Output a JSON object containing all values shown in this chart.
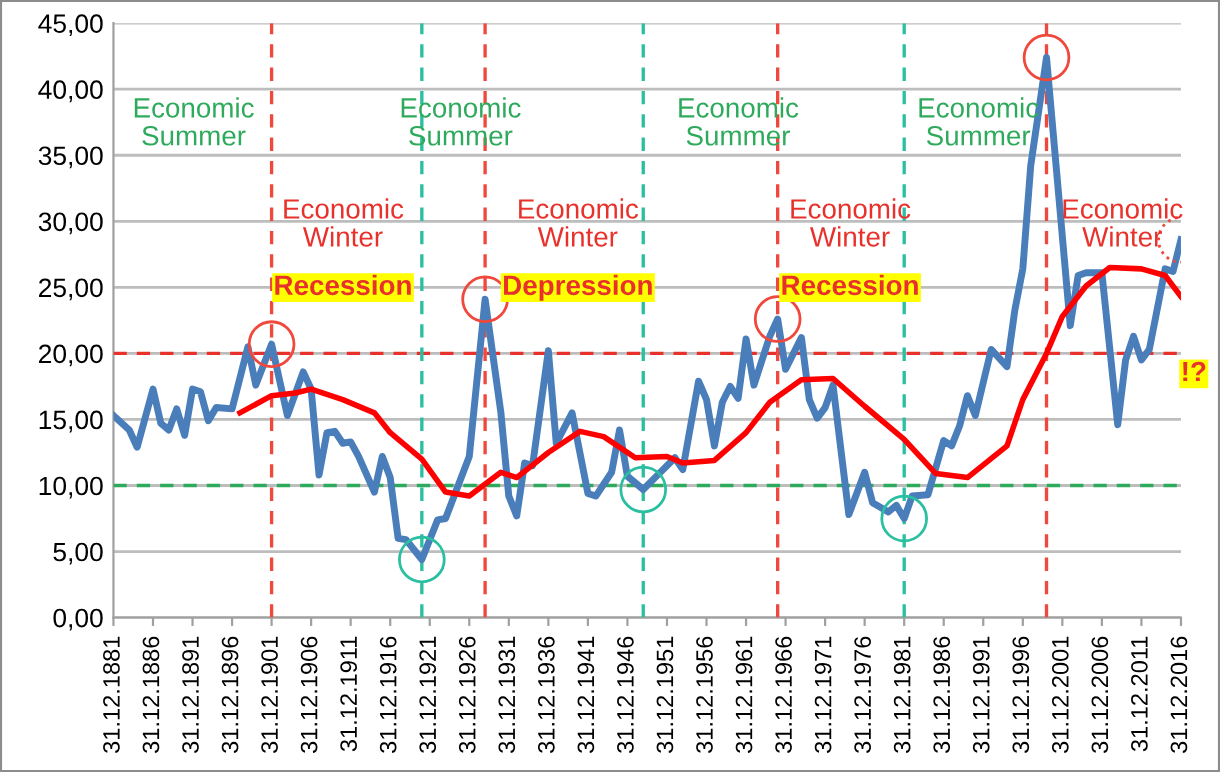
{
  "chart_data": {
    "type": "line",
    "series": [
      {
        "color": "#4a7ebb",
        "x": [
          "1881-12-31",
          "1883-12-31",
          "1884-12-31",
          "1886-12-31",
          "1887-12-31",
          "1888-12-31",
          "1889-12-31",
          "1890-12-31",
          "1891-12-31",
          "1892-12-31",
          "1893-12-31",
          "1894-12-31",
          "1896-12-31",
          "1898-12-31",
          "1899-12-31",
          "1901-12-31",
          "1903-12-31",
          "1905-12-31",
          "1906-12-31",
          "1907-12-31",
          "1908-12-31",
          "1909-12-31",
          "1910-12-31",
          "1911-12-31",
          "1912-12-31",
          "1914-12-31",
          "1915-12-31",
          "1916-12-31",
          "1917-12-31",
          "1918-12-31",
          "1920-12-31",
          "1922-12-31",
          "1923-12-31",
          "1926-12-31",
          "1928-12-31",
          "1930-12-31",
          "1931-12-31",
          "1932-12-31",
          "1933-12-31",
          "1934-12-31",
          "1936-12-31",
          "1937-12-31",
          "1939-12-31",
          "1941-12-31",
          "1942-12-31",
          "1944-12-31",
          "1945-12-31",
          "1946-12-31",
          "1948-12-31",
          "1950-12-31",
          "1951-12-31",
          "1952-12-31",
          "1953-12-31",
          "1955-12-31",
          "1956-12-31",
          "1957-12-31",
          "1958-12-31",
          "1959-12-31",
          "1960-12-31",
          "1961-12-31",
          "1962-12-31",
          "1964-12-31",
          "1965-12-31",
          "1966-12-31",
          "1968-12-31",
          "1969-12-31",
          "1970-12-31",
          "1971-12-31",
          "1972-12-31",
          "1974-12-31",
          "1976-12-31",
          "1977-12-31",
          "1979-12-31",
          "1980-12-31",
          "1981-12-31",
          "1982-12-31",
          "1984-12-31",
          "1986-12-31",
          "1987-12-31",
          "1988-12-31",
          "1989-12-31",
          "1990-12-31",
          "1991-12-31",
          "1992-12-31",
          "1994-12-31",
          "1995-12-31",
          "1996-12-31",
          "1997-12-31",
          "1999-12-31",
          "2002-12-31",
          "2003-12-31",
          "2004-12-31",
          "2006-12-31",
          "2008-12-31",
          "2009-12-31",
          "2010-12-31",
          "2011-12-31",
          "2012-12-31",
          "2014-12-31",
          "2015-12-31",
          "2016-12-31"
        ],
        "values": [
          15.3,
          14.2,
          12.9,
          17.3,
          14.7,
          14.2,
          15.8,
          13.8,
          17.3,
          17.1,
          14.9,
          15.9,
          15.8,
          20.5,
          17.6,
          20.7,
          15.3,
          18.6,
          17.3,
          10.8,
          14.0,
          14.1,
          13.2,
          13.3,
          12.2,
          9.5,
          12.2,
          10.6,
          6.0,
          5.9,
          4.4,
          7.4,
          7.5,
          12.2,
          24.1,
          15.5,
          9.2,
          7.7,
          11.7,
          11.5,
          20.2,
          13.2,
          15.5,
          9.4,
          9.2,
          11.0,
          14.2,
          10.7,
          9.7,
          10.9,
          11.5,
          12.1,
          11.2,
          17.9,
          16.5,
          13.0,
          16.3,
          17.5,
          16.6,
          21.1,
          17.6,
          21.3,
          22.6,
          18.8,
          21.2,
          16.5,
          15.1,
          15.9,
          17.6,
          7.8,
          11.0,
          8.7,
          8.0,
          8.5,
          7.5,
          9.2,
          9.3,
          13.4,
          13.0,
          14.5,
          16.8,
          15.3,
          17.8,
          20.3,
          19.0,
          23.3,
          26.4,
          34.2,
          42.4,
          22.1,
          25.9,
          26.1,
          26.1,
          14.6,
          19.5,
          21.3,
          19.5,
          20.3,
          26.4,
          26.2,
          28.6
        ]
      },
      {
        "color": "#ff0000",
        "x": [
          "1897-12-31",
          "1901-12-31",
          "1904-12-31",
          "1906-12-31",
          "1910-12-31",
          "1914-12-31",
          "1916-12-31",
          "1920-12-31",
          "1923-12-31",
          "1926-12-31",
          "1930-12-31",
          "1932-12-31",
          "1936-12-31",
          "1940-12-31",
          "1943-12-31",
          "1947-12-31",
          "1951-12-31",
          "1953-12-31",
          "1957-12-31",
          "1961-12-31",
          "1964-12-31",
          "1968-12-31",
          "1972-12-31",
          "1976-12-31",
          "1981-12-31",
          "1985-12-31",
          "1989-12-31",
          "1994-12-31",
          "1996-12-31",
          "1999-12-31",
          "2001-12-31",
          "2004-12-31",
          "2007-12-31",
          "2011-12-31",
          "2014-12-31",
          "2016-12-31"
        ],
        "values": [
          15.5,
          16.8,
          17.0,
          17.3,
          16.5,
          15.5,
          14.0,
          12.0,
          9.5,
          9.2,
          11.0,
          10.6,
          12.5,
          14.1,
          13.7,
          12.1,
          12.2,
          11.7,
          11.9,
          14.0,
          16.3,
          18.0,
          18.1,
          16.0,
          13.5,
          10.9,
          10.6,
          13.0,
          16.5,
          20.0,
          22.8,
          25.1,
          26.5,
          26.4,
          25.9,
          24.3
        ]
      }
    ],
    "xlim": [
      "1881-12-31",
      "2016-12-31"
    ],
    "xticks": [
      {
        "value": "1881-12-31",
        "label": "31.12.1881"
      },
      {
        "value": "1886-12-31",
        "label": "31.12.1886"
      },
      {
        "value": "1891-12-31",
        "label": "31.12.1891"
      },
      {
        "value": "1896-12-31",
        "label": "31.12.1896"
      },
      {
        "value": "1901-12-31",
        "label": "31.12.1901"
      },
      {
        "value": "1906-12-31",
        "label": "31.12.1906"
      },
      {
        "value": "1911-12-31",
        "label": "31.12.1911"
      },
      {
        "value": "1916-12-31",
        "label": "31.12.1916"
      },
      {
        "value": "1921-12-31",
        "label": "31.12.1921"
      },
      {
        "value": "1926-12-31",
        "label": "31.12.1926"
      },
      {
        "value": "1931-12-31",
        "label": "31.12.1931"
      },
      {
        "value": "1936-12-31",
        "label": "31.12.1936"
      },
      {
        "value": "1941-12-31",
        "label": "31.12.1941"
      },
      {
        "value": "1946-12-31",
        "label": "31.12.1946"
      },
      {
        "value": "1951-12-31",
        "label": "31.12.1951"
      },
      {
        "value": "1956-12-31",
        "label": "31.12.1956"
      },
      {
        "value": "1961-12-31",
        "label": "31.12.1961"
      },
      {
        "value": "1966-12-31",
        "label": "31.12.1966"
      },
      {
        "value": "1971-12-31",
        "label": "31.12.1971"
      },
      {
        "value": "1976-12-31",
        "label": "31.12.1976"
      },
      {
        "value": "1981-12-31",
        "label": "31.12.1981"
      },
      {
        "value": "1986-12-31",
        "label": "31.12.1986"
      },
      {
        "value": "1991-12-31",
        "label": "31.12.1991"
      },
      {
        "value": "1996-12-31",
        "label": "31.12.1996"
      },
      {
        "value": "2001-12-31",
        "label": "31.12.2001"
      },
      {
        "value": "2006-12-31",
        "label": "31.12.2006"
      },
      {
        "value": "2011-12-31",
        "label": "31.12.2011"
      },
      {
        "value": "2016-12-31",
        "label": "31.12.2016"
      }
    ],
    "ylim": [
      0,
      45
    ],
    "yticks": [
      {
        "value": 0,
        "label": "0,00"
      },
      {
        "value": 5,
        "label": "5,00"
      },
      {
        "value": 10,
        "label": "10,00"
      },
      {
        "value": 15,
        "label": "15,00"
      },
      {
        "value": 20,
        "label": "20,00"
      },
      {
        "value": 25,
        "label": "25,00"
      },
      {
        "value": 30,
        "label": "30,00"
      },
      {
        "value": 35,
        "label": "35,00"
      },
      {
        "value": 40,
        "label": "40,00"
      },
      {
        "value": 45,
        "label": "45,00"
      }
    ],
    "grid": "y",
    "line_style": "solid",
    "ref_lines": [
      {
        "axis": "y",
        "value": 20,
        "color": "#e8312b",
        "line_style": "dashed"
      },
      {
        "axis": "y",
        "value": 10,
        "color": "#2eaa5c",
        "line_style": "dashed"
      },
      {
        "axis": "x",
        "value": "1901-12-31",
        "color": "#f0483c",
        "line_style": "dashed"
      },
      {
        "axis": "x",
        "value": "1920-12-31",
        "color": "#29bfa0",
        "line_style": "dashed"
      },
      {
        "axis": "x",
        "value": "1928-12-31",
        "color": "#f0483c",
        "line_style": "dashed"
      },
      {
        "axis": "x",
        "value": "1948-12-31",
        "color": "#29bfa0",
        "line_style": "dashed"
      },
      {
        "axis": "x",
        "value": "1965-12-31",
        "color": "#f0483c",
        "line_style": "dashed"
      },
      {
        "axis": "x",
        "value": "1981-12-31",
        "color": "#29bfa0",
        "line_style": "dashed"
      },
      {
        "axis": "x",
        "value": "1999-12-31",
        "color": "#f0483c",
        "line_style": "dashed"
      }
    ],
    "annotations": [
      "Economic\nSummer",
      "Economic\nWinter",
      "Recession",
      "Economic\nSummer",
      "Economic\nWinter",
      "Depression",
      "Economic\nSummer",
      "Economic\nWinter",
      "Recession",
      "Economic\nSummer",
      "Economic\nWinter",
      "!?"
    ]
  }
}
